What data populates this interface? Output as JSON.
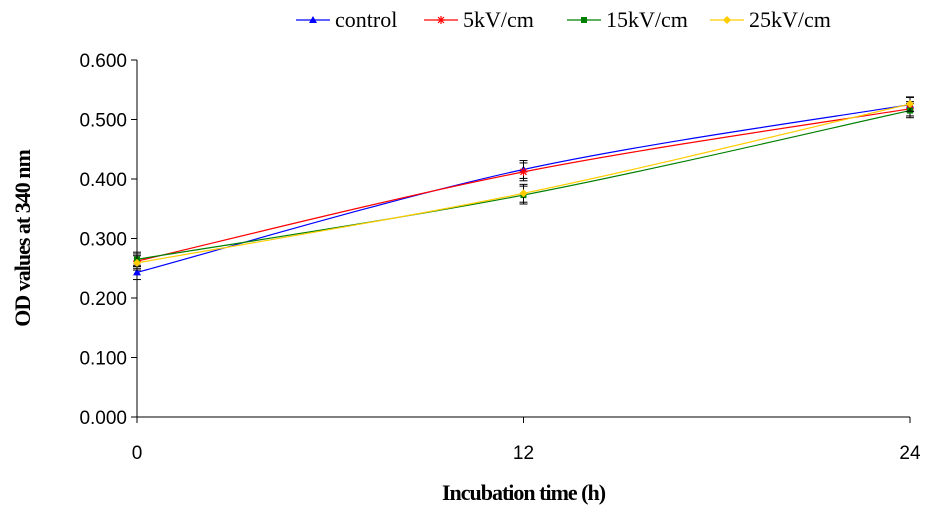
{
  "chart_data": {
    "type": "line",
    "title": "",
    "xlabel": "Incubation time (h)",
    "ylabel": "OD values at 340 nm",
    "x": [
      0,
      12,
      24
    ],
    "x_tick_labels": [
      "0",
      "12",
      "24"
    ],
    "ylim": [
      0,
      0.6
    ],
    "y_ticks": [
      0,
      0.1,
      0.2,
      0.3,
      0.4,
      0.5,
      0.6
    ],
    "y_tick_labels": [
      "0.000",
      "0.100",
      "0.200",
      "0.300",
      "0.400",
      "0.500",
      "0.600"
    ],
    "grid": false,
    "legend_position": "top",
    "series": [
      {
        "name": "control",
        "color": "#0000ff",
        "marker": "triangle",
        "values": [
          0.243,
          0.416,
          0.525
        ],
        "errors": [
          0.012,
          0.015,
          0.012
        ]
      },
      {
        "name": "5kV/cm",
        "color": "#ff0000",
        "marker": "star",
        "values": [
          0.262,
          0.412,
          0.518
        ],
        "errors": [
          0.012,
          0.015,
          0.012
        ]
      },
      {
        "name": "15kV/cm",
        "color": "#008000",
        "marker": "square",
        "values": [
          0.265,
          0.373,
          0.515
        ],
        "errors": [
          0.012,
          0.015,
          0.012
        ]
      },
      {
        "name": "25kV/cm",
        "color": "#ffcc00",
        "marker": "diamond",
        "values": [
          0.259,
          0.376,
          0.526
        ],
        "errors": [
          0.012,
          0.015,
          0.012
        ]
      }
    ]
  }
}
